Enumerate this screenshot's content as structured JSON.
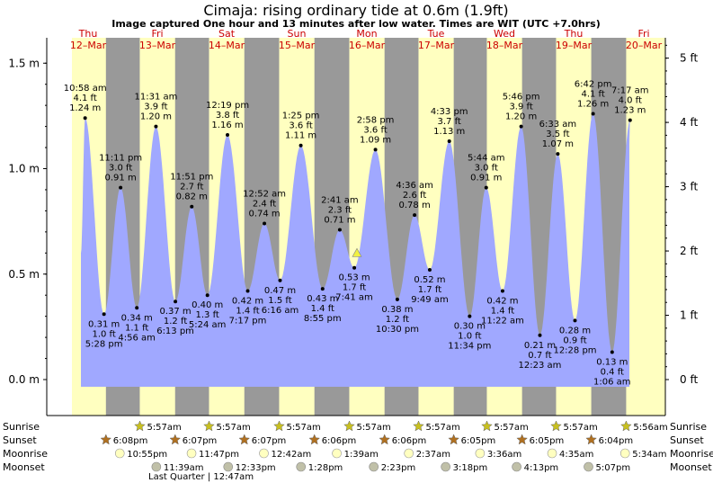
{
  "title": "Cimaja: rising  ordinary tide at 0.6m (1.9ft)",
  "subtitle": "Image captured One hour and 13 minutes after low water. Times are WIT (UTC +7.0hrs)",
  "days": [
    {
      "dow": "Thu",
      "date": "12–Mar"
    },
    {
      "dow": "Fri",
      "date": "13–Mar"
    },
    {
      "dow": "Sat",
      "date": "14–Mar"
    },
    {
      "dow": "Sun",
      "date": "15–Mar"
    },
    {
      "dow": "Mon",
      "date": "16–Mar"
    },
    {
      "dow": "Tue",
      "date": "17–Mar"
    },
    {
      "dow": "Wed",
      "date": "18–Mar"
    },
    {
      "dow": "Thu",
      "date": "19–Mar"
    },
    {
      "dow": "Fri",
      "date": "20–Mar"
    }
  ],
  "left_ticks": [
    "0.0 m",
    "0.5 m",
    "1.0 m",
    "1.5 m"
  ],
  "right_ticks": [
    "0 ft",
    "1 ft",
    "2 ft",
    "3 ft",
    "4 ft",
    "5 ft"
  ],
  "row_labels": {
    "sunrise": "Sunrise",
    "sunset": "Sunset",
    "moonrise": "Moonrise",
    "moonset": "Moonset"
  },
  "sunrise": [
    "5:57am",
    "5:57am",
    "5:57am",
    "5:57am",
    "5:57am",
    "5:57am",
    "5:57am",
    "5:56am"
  ],
  "sunset": [
    "6:08pm",
    "6:07pm",
    "6:07pm",
    "6:06pm",
    "6:06pm",
    "6:05pm",
    "6:05pm",
    "6:04pm"
  ],
  "moonrise": [
    "10:55pm",
    "11:47pm",
    "12:42am",
    "1:39am",
    "2:37am",
    "3:36am",
    "4:35am",
    "5:34am"
  ],
  "moonset": [
    "11:39am",
    "12:33pm",
    "1:28pm",
    "2:23pm",
    "3:18pm",
    "4:13pm",
    "5:07pm"
  ],
  "moon_phase": "Last Quarter | 12:47am",
  "colors": {
    "day_band": "#ffffc0",
    "night_band": "#999999",
    "water": "#a0a8ff",
    "day_text": "#cc0000",
    "sun_icon": "#c8c020",
    "sunset_icon": "#b07020",
    "moon_icon": "#ffffc0",
    "moonset_icon": "#c0c0a8",
    "marker": "#f0f040"
  },
  "chart_data": {
    "type": "area",
    "y_unit": "m",
    "ylim": [
      -0.05,
      1.65
    ],
    "current_level_m": 0.6,
    "current_level_ft": 1.9,
    "extremes": [
      {
        "time": "10:58 am",
        "ft": "4.1 ft",
        "m": 1.24,
        "type": "high"
      },
      {
        "time": "5:28 pm",
        "ft": "1.0 ft",
        "m": 0.31,
        "type": "low"
      },
      {
        "time": "11:11 pm",
        "ft": "3.0 ft",
        "m": 0.91,
        "type": "high"
      },
      {
        "time": "4:56 am",
        "ft": "1.1 ft",
        "m": 0.34,
        "type": "low"
      },
      {
        "time": "11:31 am",
        "ft": "3.9 ft",
        "m": 1.2,
        "type": "high"
      },
      {
        "time": "6:13 pm",
        "ft": "1.2 ft",
        "m": 0.37,
        "type": "low"
      },
      {
        "time": "11:51 pm",
        "ft": "2.7 ft",
        "m": 0.82,
        "type": "high"
      },
      {
        "time": "5:24 am",
        "ft": "1.3 ft",
        "m": 0.4,
        "type": "low"
      },
      {
        "time": "12:19 pm",
        "ft": "3.8 ft",
        "m": 1.16,
        "type": "high"
      },
      {
        "time": "7:17 pm",
        "ft": "1.4 ft",
        "m": 0.42,
        "type": "low"
      },
      {
        "time": "12:52 am",
        "ft": "2.4 ft",
        "m": 0.74,
        "type": "high"
      },
      {
        "time": "6:16 am",
        "ft": "1.5 ft",
        "m": 0.47,
        "type": "low"
      },
      {
        "time": "1:25 pm",
        "ft": "3.6 ft",
        "m": 1.11,
        "type": "high"
      },
      {
        "time": "8:55 pm",
        "ft": "1.4 ft",
        "m": 0.43,
        "type": "low"
      },
      {
        "time": "2:41 am",
        "ft": "2.3 ft",
        "m": 0.71,
        "type": "high"
      },
      {
        "time": "7:41 am",
        "ft": "1.7 ft",
        "m": 0.53,
        "type": "low"
      },
      {
        "time": "2:58 pm",
        "ft": "3.6 ft",
        "m": 1.09,
        "type": "high"
      },
      {
        "time": "10:30 pm",
        "ft": "1.2 ft",
        "m": 0.38,
        "type": "low"
      },
      {
        "time": "4:36 am",
        "ft": "2.6 ft",
        "m": 0.78,
        "type": "high"
      },
      {
        "time": "9:49 am",
        "ft": "1.7 ft",
        "m": 0.52,
        "type": "low"
      },
      {
        "time": "4:33 pm",
        "ft": "3.7 ft",
        "m": 1.13,
        "type": "high"
      },
      {
        "time": "11:34 pm",
        "ft": "1.0 ft",
        "m": 0.3,
        "type": "low"
      },
      {
        "time": "5:44 am",
        "ft": "3.0 ft",
        "m": 0.91,
        "type": "high"
      },
      {
        "time": "11:22 am",
        "ft": "1.4 ft",
        "m": 0.42,
        "type": "low"
      },
      {
        "time": "5:46 pm",
        "ft": "3.9 ft",
        "m": 1.2,
        "type": "high"
      },
      {
        "time": "12:23 am",
        "ft": "0.7 ft",
        "m": 0.21,
        "type": "low"
      },
      {
        "time": "6:33 am",
        "ft": "3.5 ft",
        "m": 1.07,
        "type": "high"
      },
      {
        "time": "12:28 pm",
        "ft": "0.9 ft",
        "m": 0.28,
        "type": "low"
      },
      {
        "time": "6:42 pm",
        "ft": "4.1 ft",
        "m": 1.26,
        "type": "high"
      },
      {
        "time": "1:06 am",
        "ft": "0.4 ft",
        "m": 0.13,
        "type": "low"
      },
      {
        "time": "7:17 am",
        "ft": "4.0 ft",
        "m": 1.23,
        "type": "high"
      }
    ]
  }
}
